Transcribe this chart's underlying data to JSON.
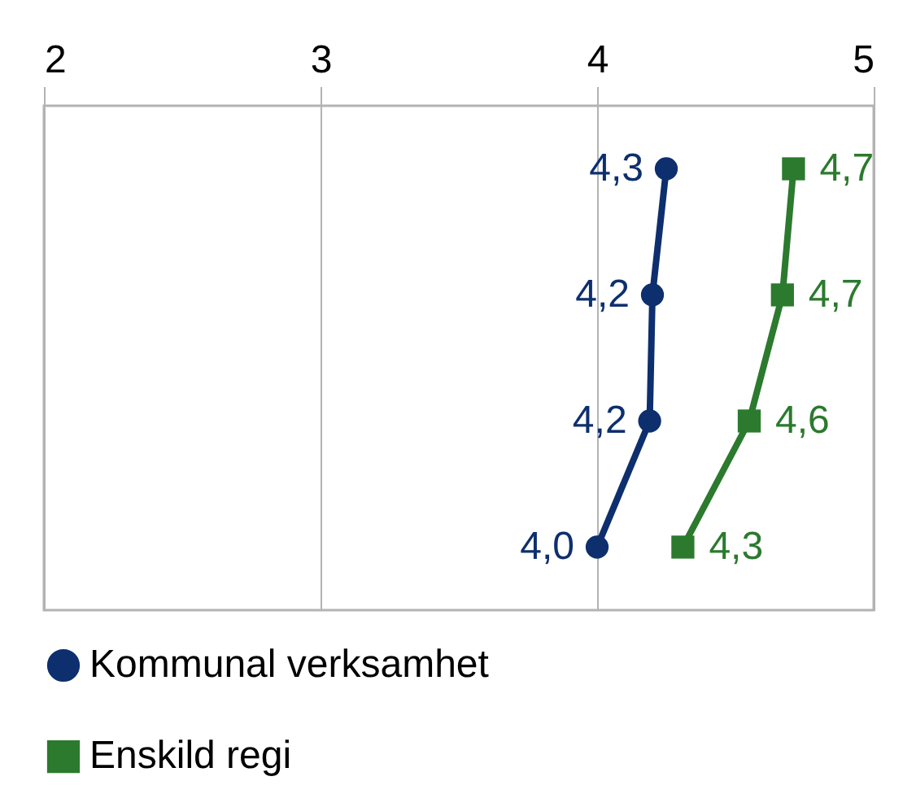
{
  "chart_data": {
    "type": "line",
    "orientation": "horizontal",
    "categories": [
      null,
      null,
      null,
      null
    ],
    "series": [
      {
        "name": "Kommunal verksamhet",
        "color": "#0e2f6e",
        "marker": "circle",
        "values": [
          4.25,
          4.2,
          4.19,
          4.0
        ],
        "value_labels": [
          "4,3",
          "4,2",
          "4,2",
          "4,0"
        ]
      },
      {
        "name": "Enskild regi",
        "color": "#2b7a2e",
        "marker": "square",
        "values": [
          4.71,
          4.67,
          4.55,
          4.31
        ],
        "value_labels": [
          "4,7",
          "4,7",
          "4,6",
          "4,3"
        ]
      }
    ],
    "xlim": [
      2,
      5
    ],
    "xticks": [
      2,
      3,
      4,
      5
    ],
    "grid": "x",
    "legend": "bottom"
  }
}
